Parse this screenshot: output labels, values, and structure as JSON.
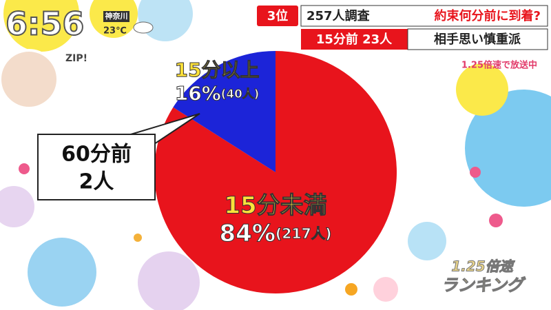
{
  "chart_data": {
    "type": "pie",
    "categories": [
      "15分未満",
      "15分以上"
    ],
    "values": [
      84,
      16
    ],
    "value_labels": [
      "84%",
      "16%"
    ],
    "count_labels": [
      "(217人)",
      "(40人)"
    ],
    "colors": [
      "#e8141c",
      "#1c24d8"
    ],
    "callout": [
      "60分前",
      "2人"
    ]
  },
  "overlay": {
    "clock": "6:56",
    "place": "神奈川",
    "temperature": "23℃",
    "logo": "ZIP!",
    "rank": "3位",
    "survey": "257人調査",
    "question": "約束何分前に到着?",
    "answer": "15分前 23人",
    "answer_note": "相手思い慎重派",
    "speed": "1.25倍速で放送中",
    "corner_top": "1.25倍速",
    "corner_bottom": "ランキング"
  }
}
